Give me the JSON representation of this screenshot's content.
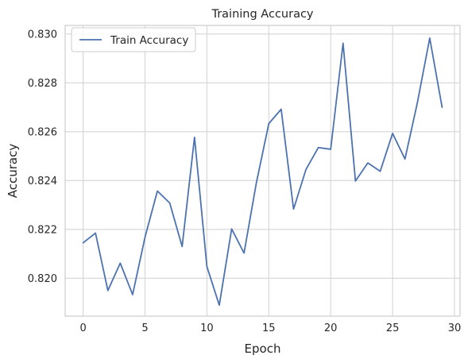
{
  "chart_data": {
    "type": "line",
    "title": "Training Accuracy",
    "xlabel": "Epoch",
    "ylabel": "Accuracy",
    "xlim": [
      -1.45,
      30.45
    ],
    "ylim": [
      0.81845,
      0.83035
    ],
    "xticks": [
      0,
      5,
      10,
      15,
      20,
      25,
      30
    ],
    "xtick_labels": [
      "0",
      "5",
      "10",
      "15",
      "20",
      "25",
      "30"
    ],
    "yticks": [
      0.82,
      0.822,
      0.824,
      0.826,
      0.828,
      0.83
    ],
    "ytick_labels": [
      "0.820",
      "0.822",
      "0.824",
      "0.826",
      "0.828",
      "0.830"
    ],
    "grid": true,
    "legend_position": "upper-left",
    "series": [
      {
        "name": "Train Accuracy",
        "color": "#4c72b0",
        "x": [
          0,
          1,
          2,
          3,
          4,
          5,
          6,
          7,
          8,
          9,
          10,
          11,
          12,
          13,
          14,
          15,
          16,
          17,
          18,
          19,
          20,
          21,
          22,
          23,
          24,
          25,
          26,
          27,
          28,
          29
        ],
        "y": [
          0.82145,
          0.82185,
          0.8195,
          0.82062,
          0.81933,
          0.82168,
          0.82357,
          0.82308,
          0.8213,
          0.82577,
          0.82048,
          0.8189,
          0.82202,
          0.82103,
          0.82392,
          0.82633,
          0.82692,
          0.82283,
          0.82445,
          0.82535,
          0.82528,
          0.82962,
          0.82398,
          0.82472,
          0.82438,
          0.82593,
          0.82488,
          0.82718,
          0.82983,
          0.827
        ]
      }
    ]
  }
}
